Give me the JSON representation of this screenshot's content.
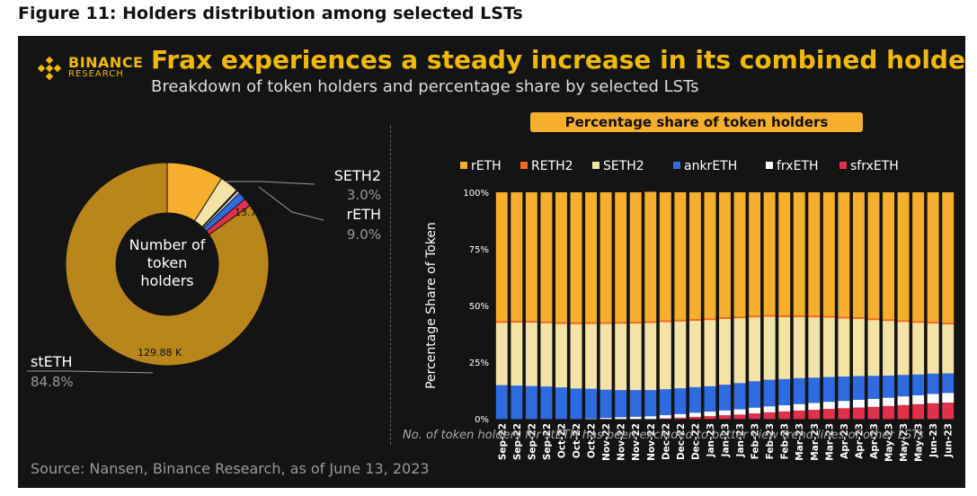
{
  "figure_title": "Figure 11: Holders distribution among selected LSTs",
  "logo": {
    "name": "BINANCE",
    "sub": "RESEARCH",
    "color": "#F0B90B"
  },
  "title": "Frax experiences a steady increase in its combined holders",
  "subtitle": "Breakdown of token holders and percentage share by selected LSTs",
  "source": "Source: Nansen, Binance Research, as of June 13, 2023",
  "footnote": "No. of token holders for stETH has been excluded to better view trend lines of other LSTs",
  "chart_data": [
    {
      "type": "pie",
      "center_label": [
        "Number of",
        "token",
        "holders"
      ],
      "slices": [
        {
          "name": "stETH",
          "percent": "84.8%",
          "share": 84.8,
          "value_label": "129.88 K",
          "color": "#B8861B"
        },
        {
          "name": "rETH",
          "percent": "9.0%",
          "share": 9.0,
          "value_label": "13.78 K",
          "color": "#F6AE2D"
        },
        {
          "name": "SETH2",
          "percent": "3.0%",
          "share": 3.0,
          "value_label": "",
          "color": "#F3E3A6"
        },
        {
          "name": "RETH2",
          "percent": "",
          "share": 0.2,
          "value_label": "",
          "color": "#F26B1D"
        },
        {
          "name": "frxETH",
          "percent": "",
          "share": 0.4,
          "value_label": "",
          "color": "#FFFFFF"
        },
        {
          "name": "ankrETH",
          "percent": "",
          "share": 1.3,
          "value_label": "",
          "color": "#2F6BE0"
        },
        {
          "name": "sfrxETH",
          "percent": "",
          "share": 1.3,
          "value_label": "",
          "color": "#E0304A"
        }
      ]
    },
    {
      "type": "bar",
      "stacked": true,
      "title": "Percentage share of token holders",
      "ylabel": "Percentage Share of Token",
      "yticks": [
        "0%",
        "25%",
        "50%",
        "75%",
        "100%"
      ],
      "ylim": [
        0,
        100
      ],
      "categories": [
        "Sep-22",
        "Sep-22",
        "Sep-22",
        "Sep-22",
        "Oct-22",
        "Oct-22",
        "Oct-22",
        "Nov-22",
        "Nov-22",
        "Nov-22",
        "Nov-22",
        "Dec-22",
        "Dec-22",
        "Dec-22",
        "Jan-23",
        "Jan-23",
        "Jan-23",
        "Feb-23",
        "Feb-23",
        "Feb-23",
        "Mar-23",
        "Mar-23",
        "Mar-23",
        "Apr-23",
        "Apr-23",
        "Apr-23",
        "May-23",
        "May-23",
        "May-23",
        "Jun-23",
        "Jun-23"
      ],
      "legend": [
        {
          "name": "rETH",
          "color": "#F6AE2D"
        },
        {
          "name": "RETH2",
          "color": "#F26B1D"
        },
        {
          "name": "SETH2",
          "color": "#F3E3A6"
        },
        {
          "name": "ankrETH",
          "color": "#2F6BE0"
        },
        {
          "name": "frxETH",
          "color": "#FFFFFF"
        },
        {
          "name": "sfrxETH",
          "color": "#E0304A"
        }
      ],
      "series": [
        {
          "name": "sfrxETH",
          "color": "#E0304A",
          "values": [
            0,
            0,
            0,
            0,
            0,
            0,
            0,
            0,
            0,
            0,
            0,
            0.3,
            0.6,
            1.0,
            1.3,
            1.7,
            2.0,
            2.5,
            3.0,
            3.4,
            3.8,
            4.1,
            4.5,
            4.8,
            5.1,
            5.4,
            5.8,
            6.2,
            6.6,
            7.0,
            7.3
          ]
        },
        {
          "name": "frxETH",
          "color": "#FFFFFF",
          "values": [
            0,
            0,
            0,
            0,
            0,
            0,
            0.2,
            0.5,
            0.8,
            1.0,
            1.2,
            1.4,
            1.6,
            1.8,
            2.0,
            2.1,
            2.3,
            2.5,
            2.6,
            2.7,
            2.8,
            3.0,
            3.1,
            3.2,
            3.4,
            3.5,
            3.6,
            3.8,
            3.9,
            4.1,
            4.2
          ]
        },
        {
          "name": "ankrETH",
          "color": "#2F6BE0",
          "values": [
            15.0,
            14.8,
            14.6,
            14.4,
            14.0,
            13.5,
            13.2,
            12.5,
            12.0,
            11.8,
            11.6,
            11.5,
            11.4,
            11.3,
            11.2,
            11.4,
            11.6,
            11.7,
            11.8,
            11.6,
            11.5,
            11.2,
            11.0,
            10.8,
            10.5,
            10.2,
            9.8,
            9.5,
            9.2,
            9.0,
            8.7
          ]
        },
        {
          "name": "SETH2",
          "color": "#F3E3A6",
          "values": [
            27.5,
            27.8,
            28.0,
            27.9,
            28.0,
            28.4,
            28.6,
            29.0,
            29.3,
            29.4,
            29.6,
            29.6,
            29.5,
            29.3,
            29.2,
            29.0,
            28.6,
            28.2,
            27.8,
            27.3,
            26.9,
            26.6,
            26.2,
            25.6,
            25.2,
            24.6,
            24.1,
            23.4,
            22.8,
            22.1,
            21.6
          ]
        },
        {
          "name": "RETH2",
          "color": "#F26B1D",
          "values": [
            0.8,
            0.8,
            0.8,
            0.8,
            0.8,
            0.8,
            0.8,
            0.8,
            0.8,
            0.8,
            0.8,
            0.8,
            0.8,
            0.8,
            0.8,
            0.8,
            0.8,
            0.8,
            0.8,
            0.8,
            0.8,
            0.8,
            0.8,
            0.8,
            0.8,
            0.8,
            0.8,
            0.8,
            0.8,
            0.8,
            0.8
          ]
        },
        {
          "name": "rETH",
          "color": "#F6AE2D",
          "values": [
            56.7,
            56.6,
            56.6,
            56.9,
            57.2,
            57.3,
            57.2,
            57.2,
            57.1,
            57.0,
            57.0,
            56.4,
            56.1,
            55.8,
            55.5,
            55.0,
            54.7,
            54.3,
            54.0,
            54.2,
            54.2,
            54.3,
            54.4,
            54.8,
            55.0,
            55.5,
            55.9,
            56.3,
            56.7,
            57.0,
            57.4
          ]
        }
      ]
    }
  ]
}
